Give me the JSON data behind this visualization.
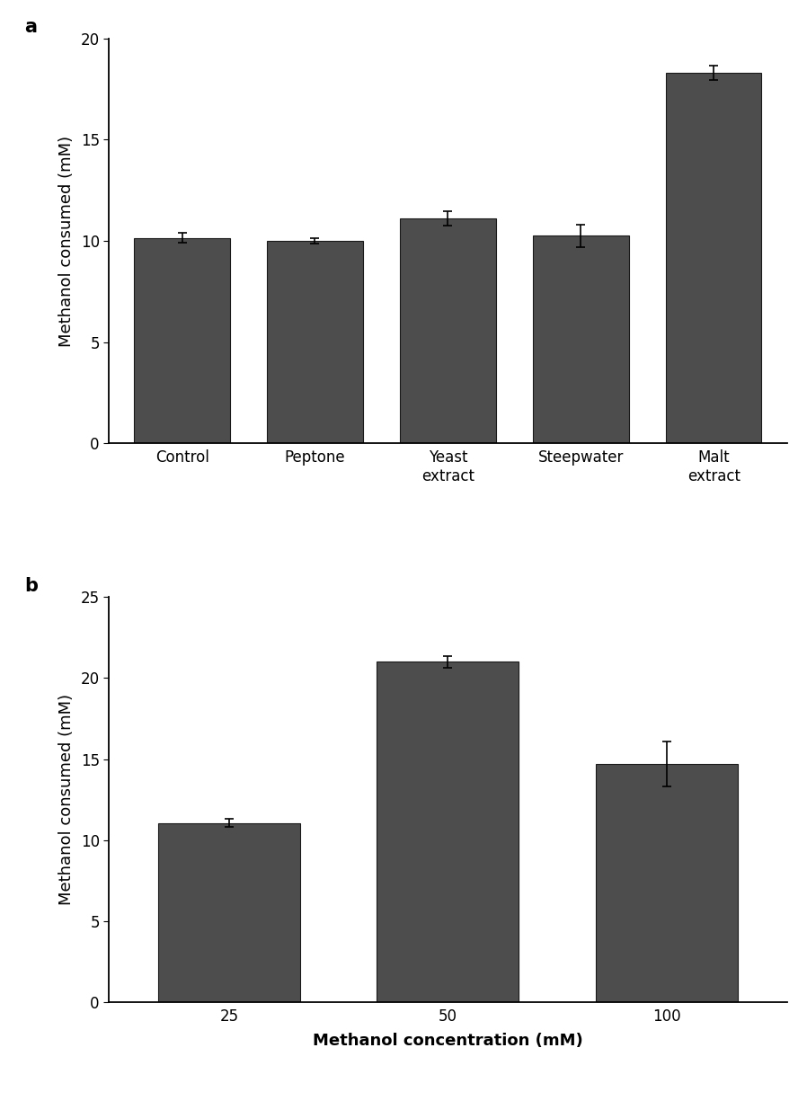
{
  "panel_a": {
    "categories": [
      "Control",
      "Peptone",
      "Yeast\nextract",
      "Steepwater",
      "Malt\nextract"
    ],
    "values": [
      10.15,
      10.0,
      11.1,
      10.25,
      18.3
    ],
    "errors": [
      0.25,
      0.15,
      0.35,
      0.55,
      0.35
    ],
    "ylabel": "Methanol consumed (mM)",
    "ylim": [
      0,
      20
    ],
    "yticks": [
      0,
      5,
      10,
      15,
      20
    ],
    "label": "a",
    "bar_width": 0.72
  },
  "panel_b": {
    "categories": [
      "25",
      "50",
      "100"
    ],
    "values": [
      11.05,
      21.0,
      14.7
    ],
    "errors": [
      0.25,
      0.35,
      1.4
    ],
    "ylabel": "Methanol consumed (mM)",
    "xlabel": "Methanol concentration (mM)",
    "ylim": [
      0,
      25
    ],
    "yticks": [
      0,
      5,
      10,
      15,
      20,
      25
    ],
    "label": "b",
    "bar_width": 0.65
  },
  "bar_color": "#4d4d4d",
  "bar_edgecolor": "#1a1a1a",
  "error_color": "black",
  "figure_width": 8.98,
  "figure_height": 12.25,
  "background_color": "#ffffff",
  "font_size_label": 13,
  "font_size_tick": 12,
  "font_size_panel_label": 15
}
